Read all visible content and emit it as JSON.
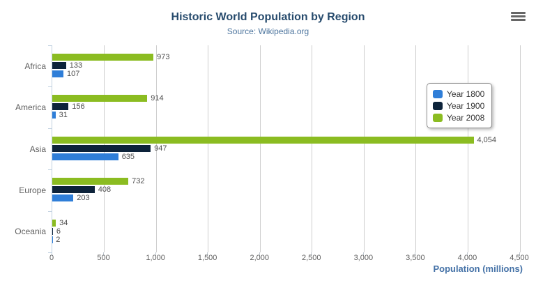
{
  "header": {
    "menu_icon": "hamburger-icon"
  },
  "chart_data": {
    "type": "bar",
    "orientation": "horizontal",
    "title": "Historic World Population by Region",
    "subtitle": "Source: Wikipedia.org",
    "categories": [
      "Africa",
      "America",
      "Asia",
      "Europe",
      "Oceania"
    ],
    "series": [
      {
        "name": "Year 1800",
        "color": "#2f7ed8",
        "values": [
          107,
          31,
          635,
          203,
          2
        ]
      },
      {
        "name": "Year 1900",
        "color": "#0d233a",
        "values": [
          133,
          156,
          947,
          408,
          6
        ]
      },
      {
        "name": "Year 2008",
        "color": "#8bbc21",
        "values": [
          973,
          914,
          4054,
          732,
          34
        ]
      }
    ],
    "series_order_top_to_bottom": [
      "Year 2008",
      "Year 1900",
      "Year 1800"
    ],
    "xlabel": "Population (millions)",
    "xlim": [
      0,
      4500
    ],
    "xticks": [
      "0",
      "500",
      "1,000",
      "1,500",
      "2,000",
      "2,500",
      "3,000",
      "3,500",
      "4,000",
      "4,500"
    ],
    "grid": true,
    "data_labels": true,
    "legend_position": "right",
    "colors": {
      "title": "#274b6d",
      "subtitle": "#4d759e",
      "axis_title": "#4572A7",
      "axis_labels": "#606060",
      "data_labels": "#4d4d4d",
      "gridline": "#CDCDCD",
      "axis_line": "#C0D0E0",
      "legend_border": "#909090",
      "menu_icon": "#666666"
    }
  }
}
